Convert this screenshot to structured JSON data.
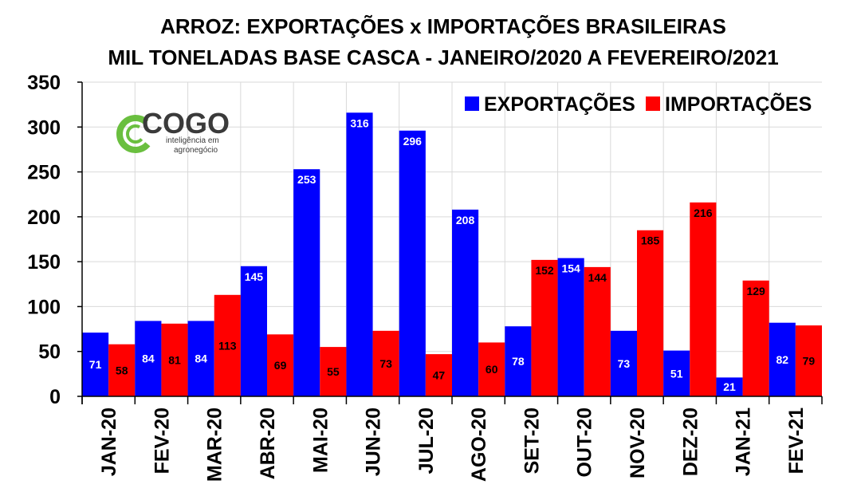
{
  "chart_data": {
    "type": "bar",
    "title": "ARROZ: EXPORTAÇÕES x IMPORTAÇÕES BRASILEIRAS",
    "subtitle": "MIL TONELADAS BASE CASCA - JANEIRO/2020 A FEVEREIRO/2021",
    "categories": [
      "JAN-20",
      "FEV-20",
      "MAR-20",
      "ABR-20",
      "MAI-20",
      "JUN-20",
      "JUL-20",
      "AGO-20",
      "SET-20",
      "OUT-20",
      "NOV-20",
      "DEZ-20",
      "JAN-21",
      "FEV-21"
    ],
    "series": [
      {
        "name": "EXPORTAÇÕES",
        "color": "#0000ff",
        "label_color": "#ffffff",
        "values": [
          71,
          84,
          84,
          145,
          253,
          316,
          296,
          208,
          78,
          154,
          73,
          51,
          21,
          82
        ]
      },
      {
        "name": "IMPORTAÇÕES",
        "color": "#ff0000",
        "label_color": "#000000",
        "values": [
          58,
          81,
          113,
          69,
          55,
          73,
          47,
          60,
          152,
          144,
          185,
          216,
          129,
          79
        ]
      }
    ],
    "ylim": [
      0,
      350
    ],
    "yticks": [
      "0",
      "50",
      "100",
      "150",
      "200",
      "250",
      "300",
      "350"
    ],
    "grid": true,
    "legend": "top-right"
  },
  "logo": {
    "word": "COGO",
    "tagline_1": "inteligência em",
    "tagline_2": "agronegócio",
    "colors": {
      "ring": "#6abf3f",
      "text": "#3a3a3a"
    }
  }
}
